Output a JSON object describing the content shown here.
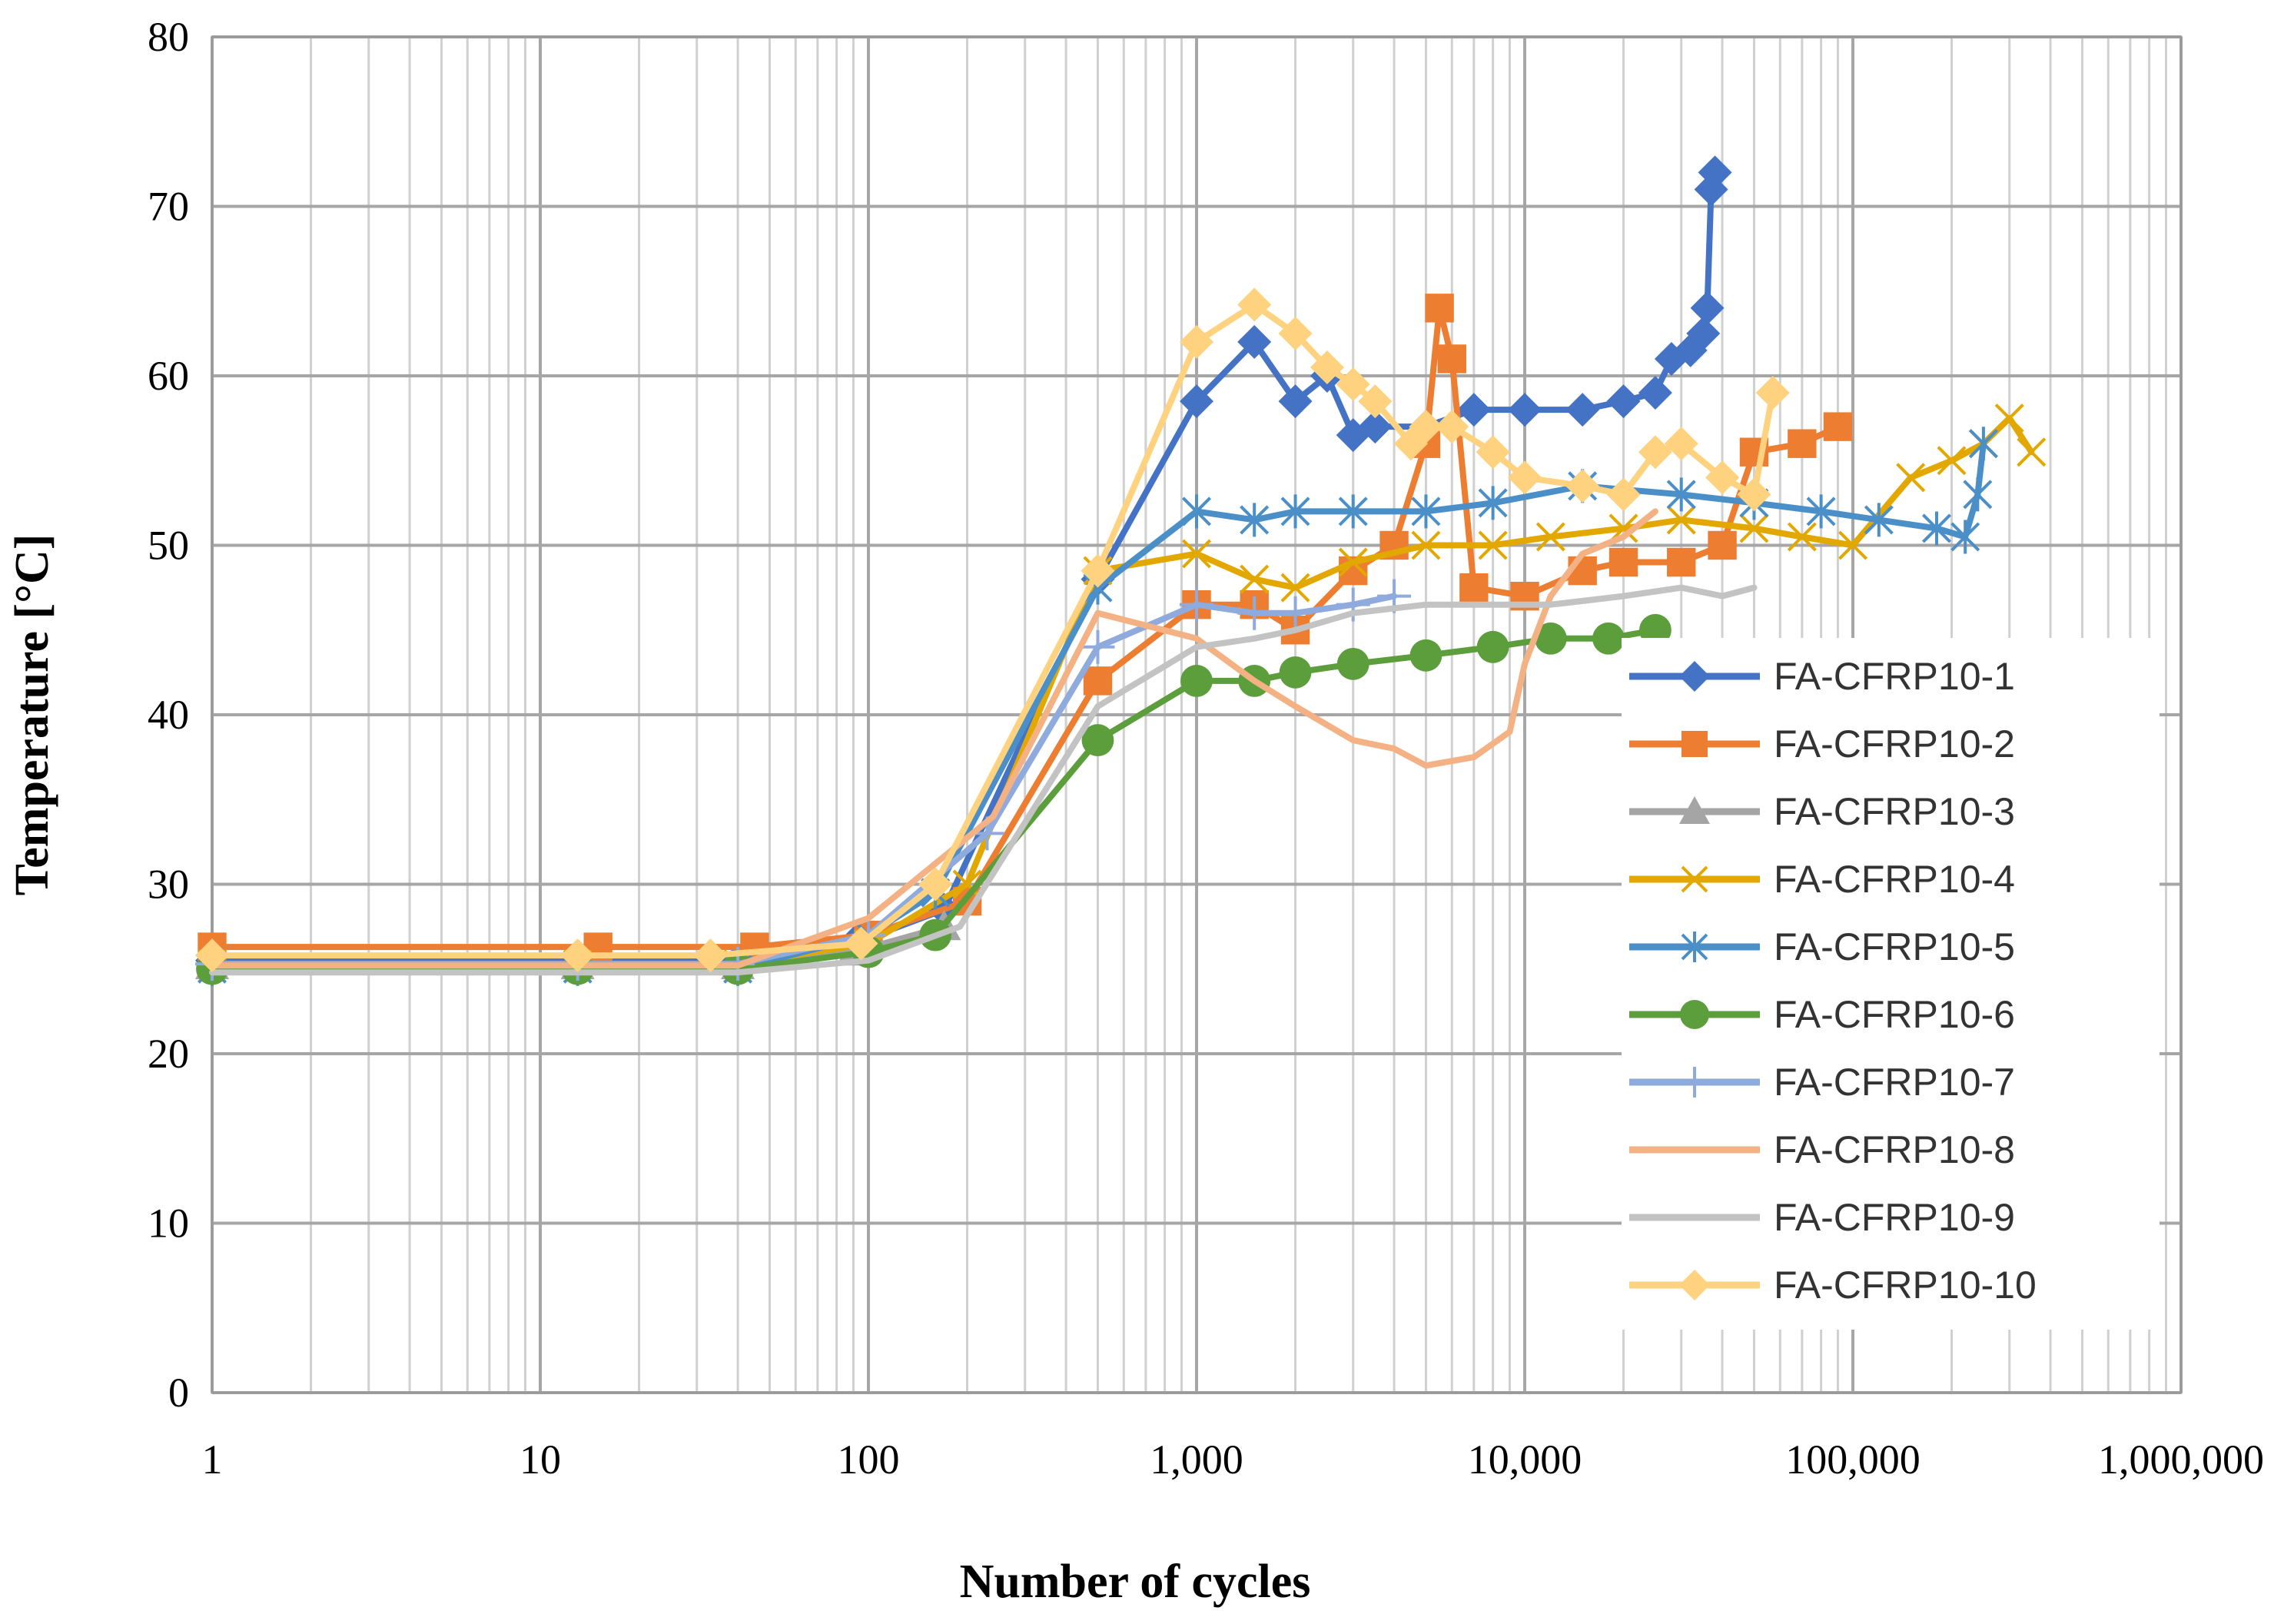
{
  "chart_data": {
    "type": "line",
    "xscale": "log",
    "title": "",
    "xlabel": "Number of cycles",
    "ylabel": "Temperature [°C]",
    "xlim": [
      1,
      1000000
    ],
    "ylim": [
      0,
      80
    ],
    "grid": true,
    "legend_position": "right",
    "x_tick_labels": [
      "1",
      "10",
      "100",
      "1,000",
      "10,000",
      "100,000",
      "1,000,000"
    ],
    "y_tick_labels": [
      "0",
      "10",
      "20",
      "30",
      "40",
      "50",
      "60",
      "70",
      "80"
    ],
    "series": [
      {
        "name": "FA-CFRP10-1",
        "color": "#4472C4",
        "marker": "diamond",
        "x": [
          1,
          13,
          40,
          90,
          170,
          500,
          1000,
          1500,
          2000,
          2500,
          3000,
          3500,
          5000,
          7000,
          10000,
          15000,
          20000,
          25000,
          28000,
          32000,
          35000,
          36000,
          37000,
          38000
        ],
        "y": [
          25.5,
          25.5,
          25.5,
          26.5,
          28.5,
          48.0,
          58.5,
          62.0,
          58.5,
          60.0,
          56.5,
          57.0,
          57.0,
          58.0,
          58.0,
          58.0,
          58.5,
          59.0,
          61.0,
          61.5,
          62.5,
          64.0,
          71.0,
          72.0
        ]
      },
      {
        "name": "FA-CFRP10-2",
        "color": "#ED7D31",
        "marker": "square",
        "x": [
          1,
          15,
          45,
          100,
          200,
          500,
          1000,
          1500,
          2000,
          3000,
          4000,
          5000,
          5500,
          6000,
          7000,
          10000,
          15000,
          20000,
          30000,
          40000,
          50000,
          70000,
          90000
        ],
        "y": [
          26.3,
          26.3,
          26.3,
          27.0,
          29.0,
          42.0,
          46.5,
          46.5,
          45.0,
          48.5,
          50.0,
          56.0,
          64.0,
          61.0,
          47.5,
          47.0,
          48.5,
          49.0,
          49.0,
          50.0,
          55.5,
          56.0,
          57.0
        ]
      },
      {
        "name": "FA-CFRP10-3",
        "color": "#A5A5A5",
        "marker": "triangle",
        "x": [
          1,
          13,
          40,
          90,
          170
        ],
        "y": [
          25.2,
          25.2,
          25.2,
          26.0,
          27.5
        ]
      },
      {
        "name": "FA-CFRP10-4",
        "color": "#E3A800",
        "marker": "x",
        "x": [
          1,
          13,
          40,
          100,
          200,
          500,
          1000,
          1500,
          2000,
          3000,
          5000,
          8000,
          12000,
          20000,
          30000,
          50000,
          70000,
          100000,
          150000,
          200000,
          250000,
          300000,
          350000
        ],
        "y": [
          25.3,
          25.3,
          25.3,
          26.5,
          30.0,
          48.5,
          49.5,
          48.0,
          47.5,
          49.0,
          50.0,
          50.0,
          50.5,
          51.0,
          51.5,
          51.0,
          50.5,
          50.0,
          54.0,
          55.0,
          56.0,
          57.5,
          55.5
        ]
      },
      {
        "name": "FA-CFRP10-5",
        "color": "#4B8FC9",
        "marker": "asterisk",
        "x": [
          1,
          13,
          40,
          100,
          160,
          500,
          1000,
          1500,
          2000,
          3000,
          5000,
          8000,
          15000,
          30000,
          50000,
          80000,
          120000,
          180000,
          220000,
          240000,
          250000
        ],
        "y": [
          25.0,
          25.0,
          25.0,
          27.0,
          29.5,
          47.5,
          52.0,
          51.5,
          52.0,
          52.0,
          52.0,
          52.5,
          53.5,
          53.0,
          52.5,
          52.0,
          51.5,
          51.0,
          50.5,
          53.0,
          56.0
        ]
      },
      {
        "name": "FA-CFRP10-6",
        "color": "#5B9E3B",
        "marker": "circle",
        "x": [
          1,
          13,
          40,
          100,
          160,
          500,
          1000,
          1500,
          2000,
          3000,
          5000,
          8000,
          12000,
          18000,
          25000,
          27000
        ],
        "y": [
          25.0,
          25.0,
          25.0,
          26.0,
          27.0,
          38.5,
          42.0,
          42.0,
          42.5,
          43.0,
          43.5,
          44.0,
          44.5,
          44.5,
          45.0,
          43.5
        ]
      },
      {
        "name": "FA-CFRP10-7",
        "color": "#8FAADC",
        "marker": "plus",
        "x": [
          1,
          13,
          40,
          100,
          230,
          500,
          1000,
          1500,
          2000,
          3000,
          4000
        ],
        "y": [
          25.3,
          25.3,
          25.3,
          27.0,
          33.0,
          44.0,
          46.5,
          46.0,
          46.0,
          46.5,
          47.0
        ]
      },
      {
        "name": "FA-CFRP10-8",
        "color": "#F4B183",
        "marker": "none",
        "x": [
          1,
          13,
          40,
          100,
          240,
          500,
          1000,
          1500,
          2000,
          3000,
          4000,
          5000,
          7000,
          9000,
          10000,
          12000,
          15000,
          20000,
          25000
        ],
        "y": [
          25.2,
          25.2,
          25.2,
          28.0,
          34.0,
          46.0,
          44.5,
          42.0,
          40.5,
          38.5,
          38.0,
          37.0,
          37.5,
          39.0,
          43.0,
          47.0,
          49.5,
          50.5,
          52.0
        ]
      },
      {
        "name": "FA-CFRP10-9",
        "color": "#C3C3C3",
        "marker": "none",
        "x": [
          1,
          13,
          40,
          100,
          190,
          500,
          1000,
          1500,
          2000,
          3000,
          5000,
          8000,
          12000,
          20000,
          30000,
          40000,
          50000
        ],
        "y": [
          24.8,
          24.8,
          24.8,
          25.5,
          27.5,
          40.5,
          44.0,
          44.5,
          45.0,
          46.0,
          46.5,
          46.5,
          46.5,
          47.0,
          47.5,
          47.0,
          47.5
        ]
      },
      {
        "name": "FA-CFRP10-10",
        "color": "#FFD27F",
        "marker": "diamond",
        "x": [
          1,
          13,
          33,
          95,
          160,
          500,
          1000,
          1500,
          2000,
          2500,
          3000,
          3500,
          4500,
          5000,
          6000,
          8000,
          10000,
          15000,
          20000,
          25000,
          30000,
          40000,
          50000,
          57000
        ],
        "y": [
          25.8,
          25.8,
          25.8,
          26.5,
          30.0,
          48.5,
          62.0,
          64.2,
          62.5,
          60.5,
          59.5,
          58.5,
          56.0,
          57.0,
          57.0,
          55.5,
          54.0,
          53.5,
          53.0,
          55.5,
          56.0,
          54.0,
          53.0,
          59.0
        ]
      }
    ]
  }
}
